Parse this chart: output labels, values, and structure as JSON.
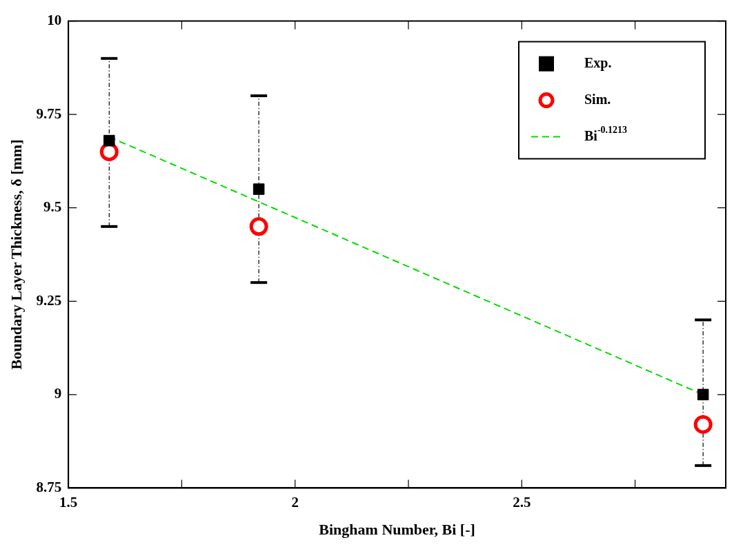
{
  "chart_data": {
    "type": "scatter",
    "xlabel": "Bingham Number, Bi [-]",
    "ylabel": "Boundary Layer Thickness, δ [mm]",
    "xlim": [
      1.5,
      2.95
    ],
    "xticks": [
      1.5,
      {
        "value": 1.75,
        "label": null
      },
      2,
      {
        "value": 2.25,
        "label": null
      },
      2.5,
      {
        "value": 2.75,
        "label": null
      }
    ],
    "ylim": [
      8.75,
      10
    ],
    "yticks": [
      8.75,
      9,
      9.25,
      9.5,
      9.75,
      10
    ],
    "grid": false,
    "legend": "top right",
    "series": [
      {
        "name": "Exp.",
        "marker": "square",
        "color": "#000000",
        "x": [
          1.59,
          1.92,
          2.9
        ],
        "values": [
          9.68,
          9.55,
          9.0
        ],
        "errors": [
          [
            9.45,
            9.9
          ],
          [
            9.3,
            9.8
          ],
          [
            8.81,
            9.2
          ]
        ]
      },
      {
        "name": "Sim.",
        "marker": "circle",
        "color": "#ff0000",
        "x": [
          1.59,
          1.92,
          2.9
        ],
        "values": [
          9.65,
          9.45,
          8.92
        ]
      },
      {
        "name": "Bi$^{-0.1213}$",
        "type": "line",
        "marker": "none",
        "line_style": "dashed",
        "color": "#00dd00",
        "x": [
          1.59,
          2.9
        ],
        "values": [
          9.69,
          9.0
        ]
      }
    ]
  }
}
